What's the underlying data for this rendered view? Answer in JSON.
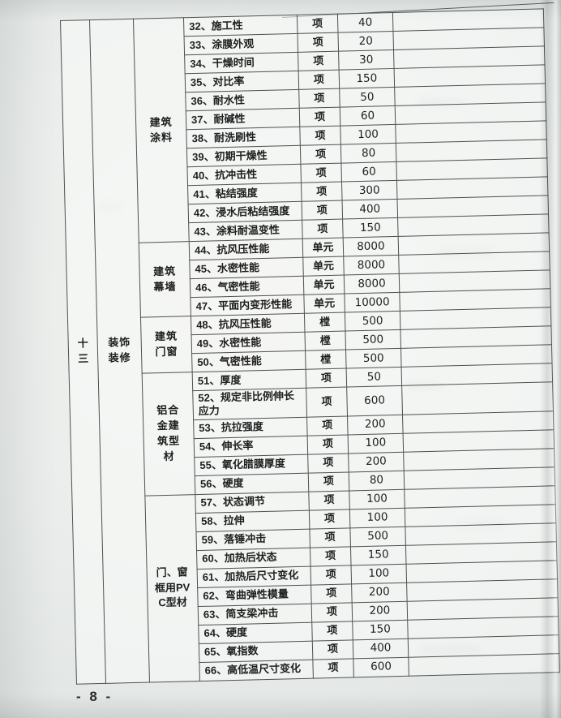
{
  "page": {
    "number_label": "- 8 -"
  },
  "colors": {
    "paper": "#eceeec",
    "table_line": "#4c514f",
    "text": "#1e1f1e"
  },
  "table": {
    "section": {
      "number": "十三",
      "name": "装饰装修"
    },
    "groups": [
      {
        "label": "建筑涂料",
        "items": [
          {
            "name": "32、施工性",
            "unit": "项",
            "fee": "40"
          },
          {
            "name": "33、涂膜外观",
            "unit": "项",
            "fee": "20"
          },
          {
            "name": "34、干燥时间",
            "unit": "项",
            "fee": "30"
          },
          {
            "name": "35、对比率",
            "unit": "项",
            "fee": "150"
          },
          {
            "name": "36、耐水性",
            "unit": "项",
            "fee": "50"
          },
          {
            "name": "37、耐碱性",
            "unit": "项",
            "fee": "60"
          },
          {
            "name": "38、耐洗刷性",
            "unit": "项",
            "fee": "100"
          },
          {
            "name": "39、初期干燥性",
            "unit": "项",
            "fee": "80"
          },
          {
            "name": "40、抗冲击性",
            "unit": "项",
            "fee": "60"
          },
          {
            "name": "41、粘结强度",
            "unit": "项",
            "fee": "300"
          },
          {
            "name": "42、浸水后粘结强度",
            "unit": "项",
            "fee": "400"
          },
          {
            "name": "43、涂料耐温变性",
            "unit": "项",
            "fee": "150"
          }
        ]
      },
      {
        "label": "建筑幕墙",
        "items": [
          {
            "name": "44、抗风压性能",
            "unit": "单元",
            "fee": "8000"
          },
          {
            "name": "45、水密性能",
            "unit": "单元",
            "fee": "8000"
          },
          {
            "name": "46、气密性能",
            "unit": "单元",
            "fee": "8000"
          },
          {
            "name": "47、平面内变形性能",
            "unit": "单元",
            "fee": "10000"
          }
        ]
      },
      {
        "label": "建筑门窗",
        "items": [
          {
            "name": "48、抗风压性能",
            "unit": "樘",
            "fee": "500"
          },
          {
            "name": "49、水密性能",
            "unit": "樘",
            "fee": "500"
          },
          {
            "name": "50、气密性能",
            "unit": "樘",
            "fee": "500"
          }
        ]
      },
      {
        "label": "铝合金建筑型材",
        "items": [
          {
            "name": "51、厚度",
            "unit": "项",
            "fee": "50"
          },
          {
            "name": "52、规定非比例伸长应力",
            "unit": "项",
            "fee": "600"
          },
          {
            "name": "53、抗拉强度",
            "unit": "项",
            "fee": "200"
          },
          {
            "name": "54、伸长率",
            "unit": "项",
            "fee": "100"
          },
          {
            "name": "55、氧化腊膜厚度",
            "unit": "项",
            "fee": "200"
          },
          {
            "name": "56、硬度",
            "unit": "项",
            "fee": "80"
          }
        ]
      },
      {
        "label": "门、窗框用PVC型材",
        "items": [
          {
            "name": "57、状态调节",
            "unit": "项",
            "fee": "100"
          },
          {
            "name": "58、拉伸",
            "unit": "项",
            "fee": "100"
          },
          {
            "name": "59、落锤冲击",
            "unit": "项",
            "fee": "500"
          },
          {
            "name": "60、加热后状态",
            "unit": "项",
            "fee": "150"
          },
          {
            "name": "61、加热后尺寸变化",
            "unit": "项",
            "fee": "100"
          },
          {
            "name": "62、弯曲弹性模量",
            "unit": "项",
            "fee": "200"
          },
          {
            "name": "63、简支梁冲击",
            "unit": "项",
            "fee": "200"
          },
          {
            "name": "64、硬度",
            "unit": "项",
            "fee": "150"
          },
          {
            "name": "65、氧指数",
            "unit": "项",
            "fee": "400"
          },
          {
            "name": "66、高低温尺寸变化",
            "unit": "项",
            "fee": "600"
          }
        ]
      }
    ]
  }
}
